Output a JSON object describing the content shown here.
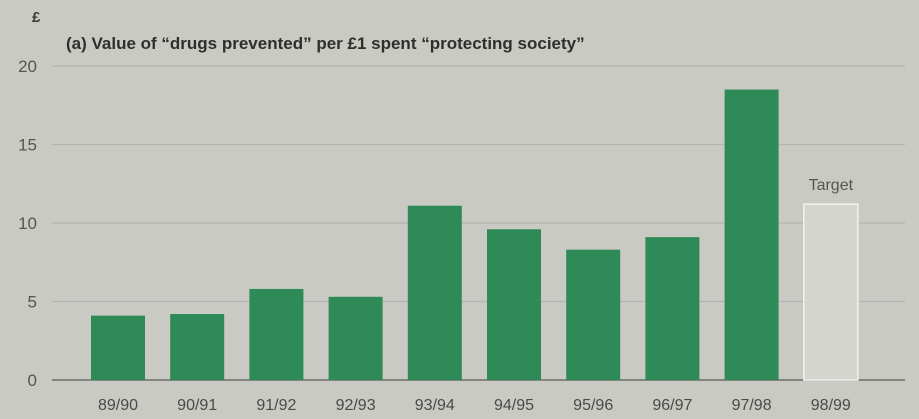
{
  "chart_data": {
    "type": "bar",
    "title": "(a) Value of “drugs prevented” per £1 spent “protecting society”",
    "ylabel": "£",
    "xlabel": "",
    "ylim": [
      0,
      20
    ],
    "yticks": [
      0,
      5,
      10,
      15,
      20
    ],
    "grid": true,
    "categories": [
      "89/90",
      "90/91",
      "91/92",
      "92/93",
      "93/94",
      "94/95",
      "95/96",
      "96/97",
      "97/98",
      "98/99"
    ],
    "values": [
      4.1,
      4.2,
      5.8,
      5.3,
      11.1,
      9.6,
      8.3,
      9.1,
      18.5,
      11.2
    ],
    "target_category": "98/99",
    "annotation": "Target",
    "colors": {
      "bar": "#2e8b57",
      "target_fill": "#d4d5cf",
      "target_stroke": "#f2f2ee",
      "grid": "#b3b4ae",
      "axis": "#6b6c66",
      "background": "#c9cac4"
    }
  }
}
